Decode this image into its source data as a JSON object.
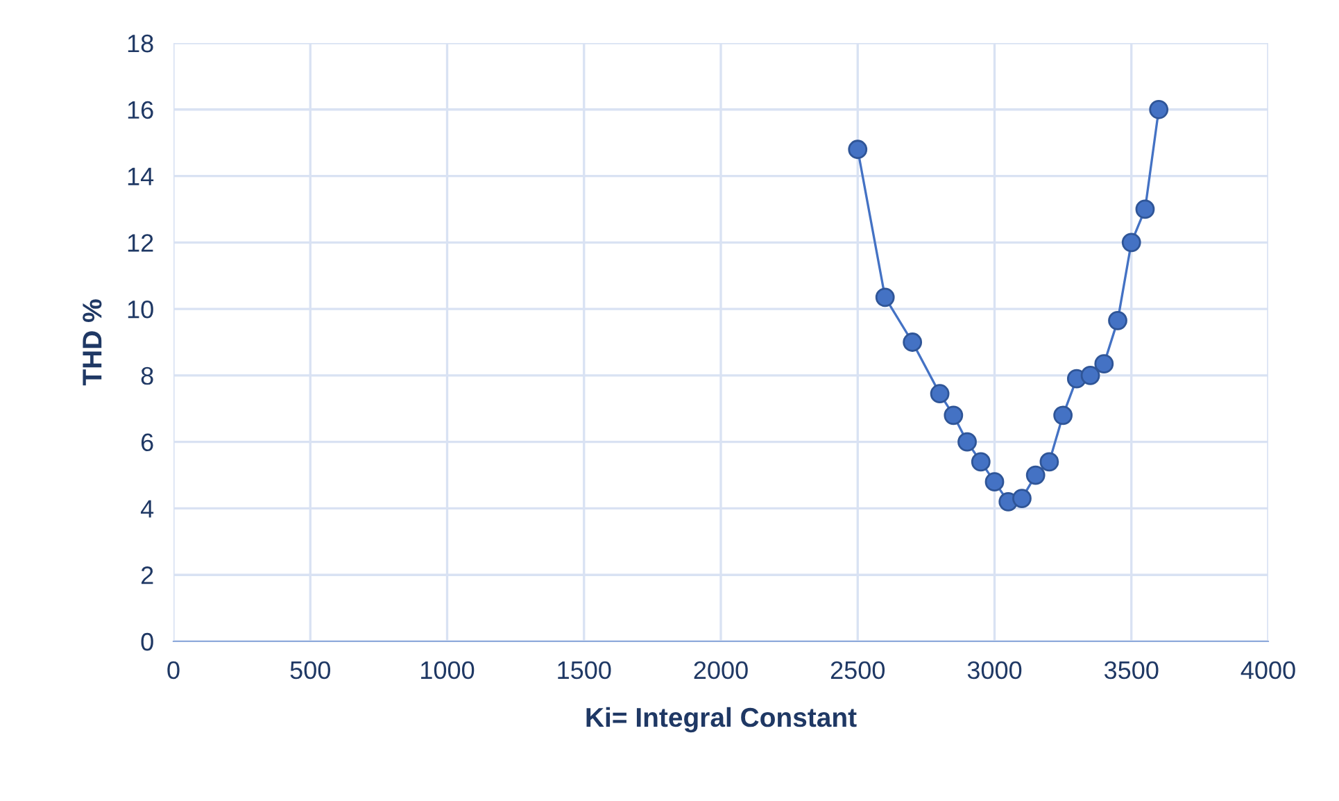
{
  "chart_data": {
    "type": "line",
    "xlabel": "Ki= Integral Constant",
    "ylabel": "THD %",
    "x": [
      2500,
      2600,
      2700,
      2800,
      2850,
      2900,
      2950,
      3000,
      3050,
      3100,
      3150,
      3200,
      3250,
      3300,
      3350,
      3400,
      3450,
      3500,
      3550,
      3600
    ],
    "series": [
      {
        "color": "#4472c4",
        "values": [
          14.8,
          10.35,
          9,
          7.45,
          6.8,
          6,
          5.4,
          4.8,
          4.2,
          4.3,
          5,
          5.4,
          6.8,
          7.9,
          8,
          8.35,
          9.65,
          12,
          13,
          16
        ]
      }
    ],
    "xlim": [
      0,
      4000
    ],
    "xticks": [
      0,
      500,
      1000,
      1500,
      2000,
      2500,
      3000,
      3500,
      4000
    ],
    "ylim": [
      0,
      18
    ],
    "yticks": [
      0,
      2,
      4,
      6,
      8,
      10,
      12,
      14,
      16,
      18
    ],
    "grid": true,
    "marker": "circle",
    "line_style": "solid",
    "legend": false
  }
}
